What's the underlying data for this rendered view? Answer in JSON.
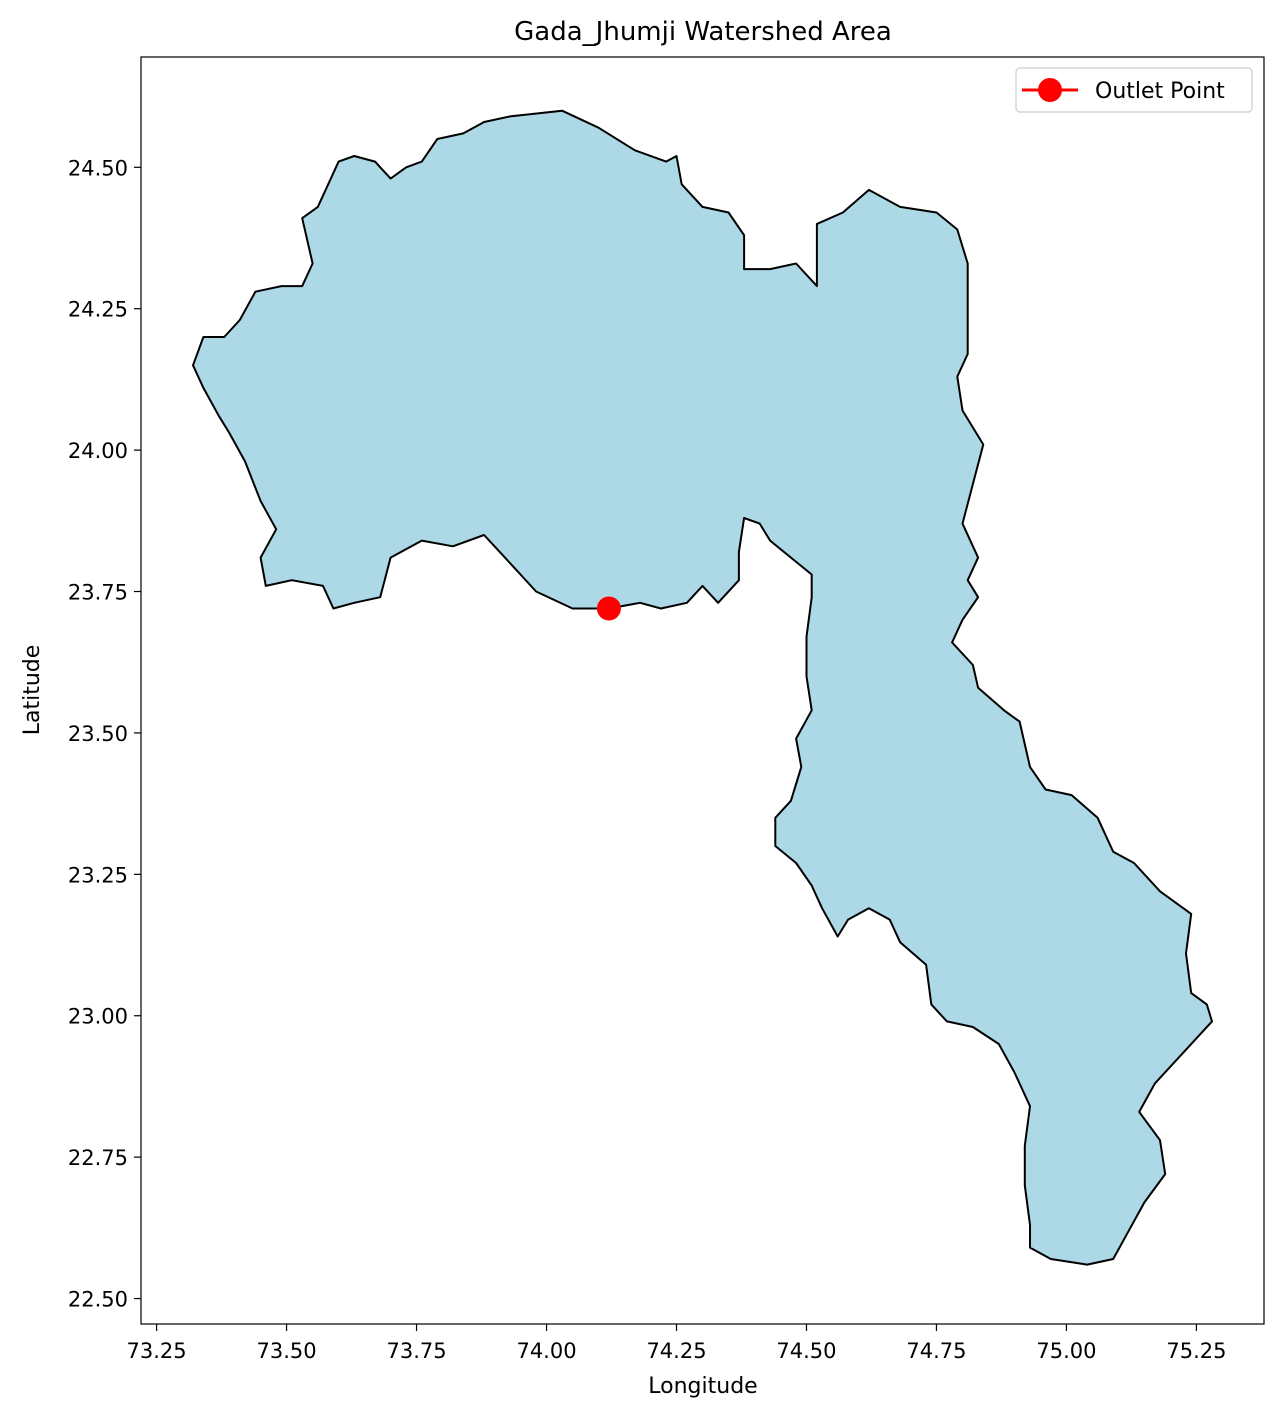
{
  "chart_data": {
    "type": "map",
    "title": "Gada_Jhumji Watershed Area",
    "xlabel": "Longitude",
    "ylabel": "Latitude",
    "xlim": [
      73.22,
      75.38
    ],
    "ylim": [
      22.455,
      24.695
    ],
    "x_ticks": [
      {
        "value": 73.25,
        "label": "73.25"
      },
      {
        "value": 73.5,
        "label": "73.50"
      },
      {
        "value": 73.75,
        "label": "73.75"
      },
      {
        "value": 74.0,
        "label": "74.00"
      },
      {
        "value": 74.25,
        "label": "74.25"
      },
      {
        "value": 74.5,
        "label": "74.50"
      },
      {
        "value": 74.75,
        "label": "74.75"
      },
      {
        "value": 75.0,
        "label": "75.00"
      },
      {
        "value": 75.25,
        "label": "75.25"
      }
    ],
    "y_ticks": [
      {
        "value": 22.5,
        "label": "22.50"
      },
      {
        "value": 22.75,
        "label": "22.75"
      },
      {
        "value": 23.0,
        "label": "23.00"
      },
      {
        "value": 23.25,
        "label": "23.25"
      },
      {
        "value": 23.5,
        "label": "23.50"
      },
      {
        "value": 23.75,
        "label": "23.75"
      },
      {
        "value": 24.0,
        "label": "24.00"
      },
      {
        "value": 24.25,
        "label": "24.25"
      },
      {
        "value": 24.5,
        "label": "24.50"
      }
    ],
    "watershed": {
      "fill_color": "#add8e6",
      "edge_color": "#000000",
      "boundary": [
        [
          73.93,
          24.59
        ],
        [
          74.03,
          24.6
        ],
        [
          74.1,
          24.57
        ],
        [
          74.17,
          24.53
        ],
        [
          74.23,
          24.51
        ],
        [
          74.25,
          24.52
        ],
        [
          74.26,
          24.47
        ],
        [
          74.3,
          24.43
        ],
        [
          74.35,
          24.42
        ],
        [
          74.38,
          24.38
        ],
        [
          74.38,
          24.32
        ],
        [
          74.43,
          24.32
        ],
        [
          74.48,
          24.33
        ],
        [
          74.52,
          24.29
        ],
        [
          74.52,
          24.4
        ],
        [
          74.57,
          24.42
        ],
        [
          74.62,
          24.46
        ],
        [
          74.68,
          24.43
        ],
        [
          74.75,
          24.42
        ],
        [
          74.79,
          24.39
        ],
        [
          74.81,
          24.33
        ],
        [
          74.81,
          24.26
        ],
        [
          74.81,
          24.17
        ],
        [
          74.79,
          24.13
        ],
        [
          74.8,
          24.07
        ],
        [
          74.84,
          24.01
        ],
        [
          74.82,
          23.94
        ],
        [
          74.8,
          23.87
        ],
        [
          74.83,
          23.81
        ],
        [
          74.81,
          23.77
        ],
        [
          74.83,
          23.74
        ],
        [
          74.8,
          23.7
        ],
        [
          74.78,
          23.66
        ],
        [
          74.82,
          23.62
        ],
        [
          74.83,
          23.58
        ],
        [
          74.88,
          23.54
        ],
        [
          74.91,
          23.52
        ],
        [
          74.93,
          23.44
        ],
        [
          74.96,
          23.4
        ],
        [
          75.01,
          23.39
        ],
        [
          75.06,
          23.35
        ],
        [
          75.09,
          23.29
        ],
        [
          75.13,
          23.27
        ],
        [
          75.18,
          23.22
        ],
        [
          75.24,
          23.18
        ],
        [
          75.23,
          23.11
        ],
        [
          75.24,
          23.04
        ],
        [
          75.27,
          23.02
        ],
        [
          75.28,
          22.99
        ],
        [
          75.22,
          22.93
        ],
        [
          75.17,
          22.88
        ],
        [
          75.14,
          22.83
        ],
        [
          75.18,
          22.78
        ],
        [
          75.19,
          22.72
        ],
        [
          75.15,
          22.67
        ],
        [
          75.12,
          22.62
        ],
        [
          75.09,
          22.57
        ],
        [
          75.04,
          22.56
        ],
        [
          74.97,
          22.57
        ],
        [
          74.93,
          22.59
        ],
        [
          74.93,
          22.63
        ],
        [
          74.92,
          22.7
        ],
        [
          74.92,
          22.77
        ],
        [
          74.93,
          22.84
        ],
        [
          74.9,
          22.9
        ],
        [
          74.87,
          22.95
        ],
        [
          74.82,
          22.98
        ],
        [
          74.77,
          22.99
        ],
        [
          74.74,
          23.02
        ],
        [
          74.73,
          23.09
        ],
        [
          74.68,
          23.13
        ],
        [
          74.66,
          23.17
        ],
        [
          74.62,
          23.19
        ],
        [
          74.58,
          23.17
        ],
        [
          74.56,
          23.14
        ],
        [
          74.53,
          23.19
        ],
        [
          74.51,
          23.23
        ],
        [
          74.48,
          23.27
        ],
        [
          74.44,
          23.3
        ],
        [
          74.44,
          23.35
        ],
        [
          74.47,
          23.38
        ],
        [
          74.49,
          23.44
        ],
        [
          74.48,
          23.49
        ],
        [
          74.51,
          23.54
        ],
        [
          74.5,
          23.6
        ],
        [
          74.5,
          23.67
        ],
        [
          74.51,
          23.74
        ],
        [
          74.51,
          23.78
        ],
        [
          74.47,
          23.81
        ],
        [
          74.43,
          23.84
        ],
        [
          74.41,
          23.87
        ],
        [
          74.38,
          23.88
        ],
        [
          74.37,
          23.82
        ],
        [
          74.37,
          23.77
        ],
        [
          74.33,
          23.73
        ],
        [
          74.3,
          23.76
        ],
        [
          74.27,
          23.73
        ],
        [
          74.22,
          23.72
        ],
        [
          74.18,
          23.73
        ],
        [
          74.12,
          23.72
        ],
        [
          74.05,
          23.72
        ],
        [
          73.98,
          23.75
        ],
        [
          73.93,
          23.8
        ],
        [
          73.88,
          23.85
        ],
        [
          73.82,
          23.83
        ],
        [
          73.76,
          23.84
        ],
        [
          73.7,
          23.81
        ],
        [
          73.68,
          23.74
        ],
        [
          73.63,
          23.73
        ],
        [
          73.59,
          23.72
        ],
        [
          73.57,
          23.76
        ],
        [
          73.51,
          23.77
        ],
        [
          73.46,
          23.76
        ],
        [
          73.45,
          23.81
        ],
        [
          73.48,
          23.86
        ],
        [
          73.45,
          23.91
        ],
        [
          73.42,
          23.98
        ],
        [
          73.39,
          24.03
        ],
        [
          73.37,
          24.06
        ],
        [
          73.34,
          24.11
        ],
        [
          73.32,
          24.15
        ],
        [
          73.34,
          24.2
        ],
        [
          73.38,
          24.2
        ],
        [
          73.41,
          24.23
        ],
        [
          73.44,
          24.28
        ],
        [
          73.49,
          24.29
        ],
        [
          73.53,
          24.29
        ],
        [
          73.55,
          24.33
        ],
        [
          73.53,
          24.41
        ],
        [
          73.56,
          24.43
        ],
        [
          73.58,
          24.47
        ],
        [
          73.6,
          24.51
        ],
        [
          73.63,
          24.52
        ],
        [
          73.67,
          24.51
        ],
        [
          73.7,
          24.48
        ],
        [
          73.73,
          24.5
        ],
        [
          73.76,
          24.51
        ],
        [
          73.79,
          24.55
        ],
        [
          73.84,
          24.56
        ],
        [
          73.88,
          24.58
        ]
      ]
    },
    "outlet_point": {
      "lon": 74.12,
      "lat": 23.72,
      "color": "#ff0000"
    },
    "legend": {
      "label": "Outlet Point",
      "position": "upper-right"
    }
  }
}
